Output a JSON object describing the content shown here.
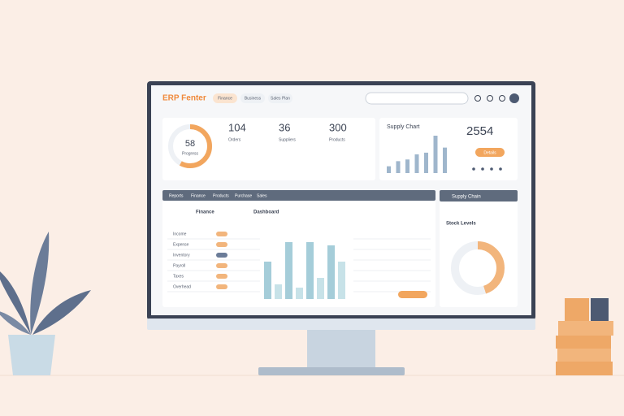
{
  "header": {
    "logo": "ERP Fenter",
    "tabs": [
      "Finance",
      "Business",
      "Sales Plan"
    ]
  },
  "summary": {
    "gauge": {
      "value": 58,
      "label": "Progress"
    },
    "stats": [
      {
        "value": "104",
        "label": "Orders"
      },
      {
        "value": "36",
        "label": "Suppliers"
      },
      {
        "value": "300",
        "label": "Products"
      }
    ]
  },
  "supply": {
    "title": "Supply Chart",
    "values": [
      8,
      14,
      16,
      22,
      24,
      44,
      30
    ],
    "total": "2554",
    "button": "Details"
  },
  "main": {
    "tabs": [
      "Reports",
      "Finance",
      "Products",
      "Purchase",
      "Sales"
    ],
    "left_title": "Finance",
    "center_title": "Dashboard",
    "rows": [
      "Income",
      "Expense",
      "Inventory",
      "Payroll",
      "Taxes",
      "Overhead"
    ],
    "chart": {
      "values": [
        46,
        18,
        70,
        14,
        70,
        26,
        66,
        46
      ]
    }
  },
  "side": {
    "title": "Supply Chain",
    "donut_title": "Stock Levels",
    "donut": {
      "values": [
        45,
        55
      ]
    }
  }
}
